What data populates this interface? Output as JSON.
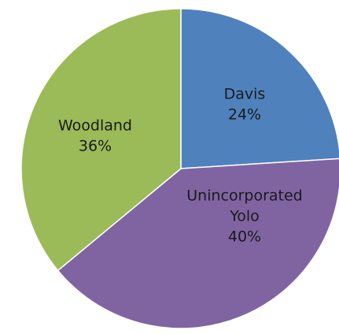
{
  "chart_data": {
    "type": "pie",
    "title": "",
    "start_angle_deg": 0,
    "direction": "clockwise",
    "slices": [
      {
        "label": "Davis",
        "value": 24,
        "value_text": "24%",
        "color": "#4F81BD",
        "label_lines": [
          "Davis"
        ]
      },
      {
        "label": "Unincorporated Yolo",
        "value": 40,
        "value_text": "40%",
        "color": "#8064A2",
        "label_lines": [
          "Unincorporated",
          "Yolo"
        ]
      },
      {
        "label": "Woodland",
        "value": 36,
        "value_text": "36%",
        "color": "#9BBB59",
        "label_lines": [
          "Woodland"
        ]
      }
    ]
  }
}
